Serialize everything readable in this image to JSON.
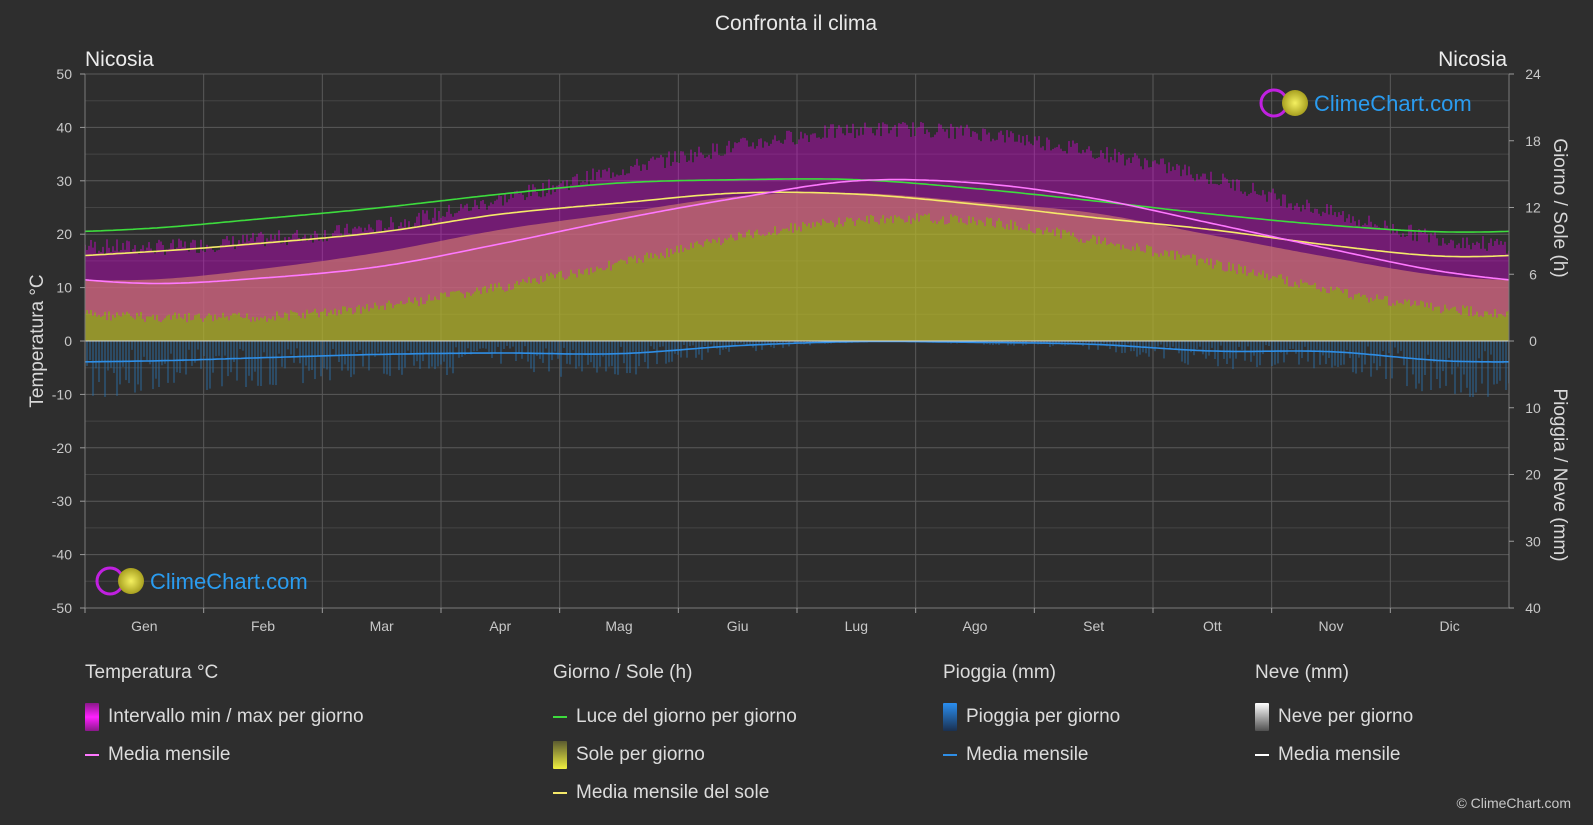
{
  "title": "Confronta il clima",
  "location_left": "Nicosia",
  "location_right": "Nicosia",
  "watermark": "ClimeChart.com",
  "copyright": "© ClimeChart.com",
  "chart_data": {
    "type": "area",
    "categories": [
      "Gen",
      "Feb",
      "Mar",
      "Apr",
      "Mag",
      "Giu",
      "Lug",
      "Ago",
      "Set",
      "Ott",
      "Nov",
      "Dic"
    ],
    "y_left": {
      "label": "Temperatura °C",
      "ylim": [
        -50,
        50
      ],
      "ticks": [
        50,
        40,
        30,
        20,
        10,
        0,
        -10,
        -20,
        -30,
        -40,
        -50
      ]
    },
    "y_right_top": {
      "label": "Giorno / Sole (h)",
      "ylim": [
        0,
        24
      ],
      "ticks": [
        24,
        18,
        12,
        6,
        0
      ]
    },
    "y_right_bottom": {
      "label": "Pioggia / Neve (mm)",
      "ylim": [
        0,
        40
      ],
      "ticks": [
        0,
        10,
        20,
        30,
        40
      ]
    },
    "series": [
      {
        "name": "Intervallo min / max per giorno",
        "kind": "band",
        "color": "#e000e0",
        "min": [
          5.5,
          5.5,
          7.5,
          11,
          15.5,
          20.5,
          23.5,
          23.5,
          20,
          15.5,
          10.5,
          7
        ],
        "max": [
          16,
          17.5,
          20,
          25,
          30.5,
          35,
          38,
          37.5,
          34,
          29,
          22.5,
          17.5
        ]
      },
      {
        "name": "Media mensile",
        "kind": "line",
        "axis": "temp",
        "color": "#ff78ff",
        "values": [
          10.8,
          11.8,
          14,
          18.2,
          22.8,
          26.8,
          30,
          29.6,
          26.7,
          22,
          17.2,
          12.8
        ]
      },
      {
        "name": "Luce del giorno per giorno",
        "kind": "line",
        "axis": "sun",
        "color": "#3ddc3d",
        "values": [
          10.1,
          11,
          12,
          13.2,
          14.2,
          14.5,
          14.5,
          13.7,
          12.6,
          11.4,
          10.4,
          9.8
        ]
      },
      {
        "name": "Sole per giorno",
        "kind": "area",
        "axis": "sun",
        "color": "#b6b62c",
        "values": [
          5.5,
          6.5,
          8,
          10,
          11.5,
          13,
          13.3,
          12.5,
          11.5,
          9.5,
          7.5,
          5.8
        ]
      },
      {
        "name": "Media mensile del sole",
        "kind": "line",
        "axis": "sun",
        "color": "#f5e96a",
        "values": [
          8,
          8.8,
          9.8,
          11.4,
          12.4,
          13.3,
          13.2,
          12.3,
          11.1,
          10,
          8.6,
          7.6
        ]
      },
      {
        "name": "Pioggia per giorno",
        "kind": "bars",
        "axis": "rain",
        "color": "#2a6ea8"
      },
      {
        "name": "Media mensile",
        "kind": "line",
        "axis": "rain",
        "color": "#2e8ee6",
        "values": [
          3,
          2.5,
          2,
          1.8,
          1.9,
          0.7,
          0.1,
          0.2,
          0.5,
          1.5,
          1.6,
          3.0
        ]
      },
      {
        "name": "Neve per giorno",
        "kind": "bars",
        "axis": "rain",
        "color": "#bbbbbb"
      },
      {
        "name": "Media mensile",
        "kind": "line",
        "axis": "rain",
        "color": "#ffffff",
        "values": [
          0,
          0,
          0,
          0,
          0,
          0,
          0,
          0,
          0,
          0,
          0,
          0
        ]
      }
    ]
  },
  "legend": {
    "temperature": {
      "title": "Temperatura °C",
      "items": [
        "Intervallo min / max per giorno",
        "Media mensile"
      ]
    },
    "sun": {
      "title": "Giorno / Sole (h)",
      "items": [
        "Luce del giorno per giorno",
        "Sole per giorno",
        "Media mensile del sole"
      ]
    },
    "rain": {
      "title": "Pioggia (mm)",
      "items": [
        "Pioggia per giorno",
        "Media mensile"
      ]
    },
    "snow": {
      "title": "Neve (mm)",
      "items": [
        "Neve per giorno",
        "Media mensile"
      ]
    }
  },
  "colors": {
    "background": "#2e2e2e",
    "temp_band": "#e000e0",
    "temp_avg": "#ff78ff",
    "daylight": "#3ddc3d",
    "sunshine": "#b6b62c",
    "sun_avg": "#f5e96a",
    "rain": "#2a6ea8",
    "rain_avg": "#2e8ee6",
    "snow": "#bbbbbb",
    "snow_avg": "#ffffff",
    "watermark": "#2a9cf0"
  }
}
